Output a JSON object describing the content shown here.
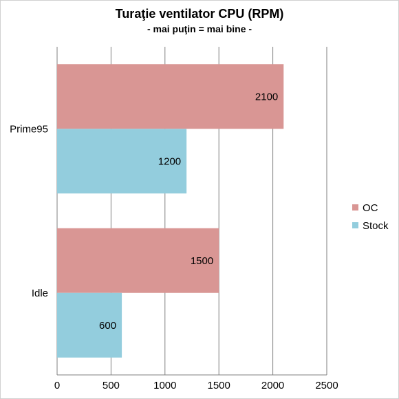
{
  "chart_data": {
    "type": "bar",
    "orientation": "horizontal",
    "title": "Turaţie ventilator CPU (RPM)",
    "subtitle": "- mai puţin = mai bine -",
    "categories": [
      "Prime95",
      "Idle"
    ],
    "series": [
      {
        "name": "OC",
        "values": [
          2100,
          1500
        ],
        "color": "#d99694"
      },
      {
        "name": "Stock",
        "values": [
          1200,
          600
        ],
        "color": "#93cddd"
      }
    ],
    "xlim": [
      0,
      2500
    ],
    "xticks": [
      0,
      500,
      1000,
      1500,
      2000,
      2500
    ],
    "grid": true,
    "legend": "right"
  }
}
